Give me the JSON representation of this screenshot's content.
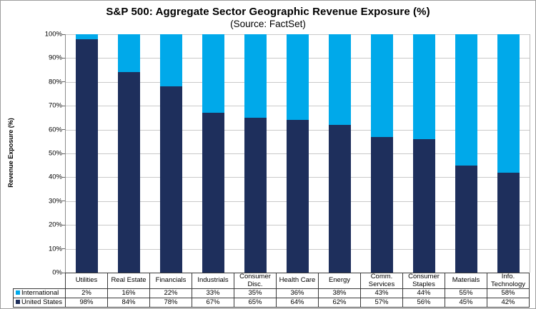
{
  "chart_data": {
    "type": "bar",
    "stacked": true,
    "title": "S&P 500: Aggregate Sector Geographic Revenue Exposure (%)",
    "subtitle": "(Source: FactSet)",
    "ylabel": "Revenue Exposure (%)",
    "ylim": [
      0,
      100
    ],
    "ytick_step": 10,
    "yticks": [
      "100%",
      "90%",
      "80%",
      "70%",
      "60%",
      "50%",
      "40%",
      "30%",
      "20%",
      "10%",
      "0%"
    ],
    "grid": true,
    "legend_position": "table-left",
    "categories": [
      "Utilities",
      "Real Estate",
      "Financials",
      "Industrials",
      "Consumer Disc.",
      "Health Care",
      "Energy",
      "Comm. Services",
      "Consumer Staples",
      "Materials",
      "Info. Technology"
    ],
    "series": [
      {
        "name": "International",
        "color": "#00A9EA",
        "values": [
          2,
          16,
          22,
          33,
          35,
          36,
          38,
          43,
          44,
          55,
          58
        ],
        "labels": [
          "2%",
          "16%",
          "22%",
          "33%",
          "35%",
          "36%",
          "38%",
          "43%",
          "44%",
          "55%",
          "58%"
        ]
      },
      {
        "name": "United States",
        "color": "#1E2F5C",
        "values": [
          98,
          84,
          78,
          67,
          65,
          64,
          62,
          57,
          56,
          45,
          42
        ],
        "labels": [
          "98%",
          "84%",
          "78%",
          "67%",
          "65%",
          "64%",
          "62%",
          "57%",
          "56%",
          "45%",
          "42%"
        ]
      }
    ]
  },
  "colors": {
    "gridline": "#C9C9C9",
    "axis_line": "#8C8C8C",
    "table_border": "#3A3A3A",
    "frame_border": "#9E9E9E",
    "background": "#FFFFFF"
  }
}
